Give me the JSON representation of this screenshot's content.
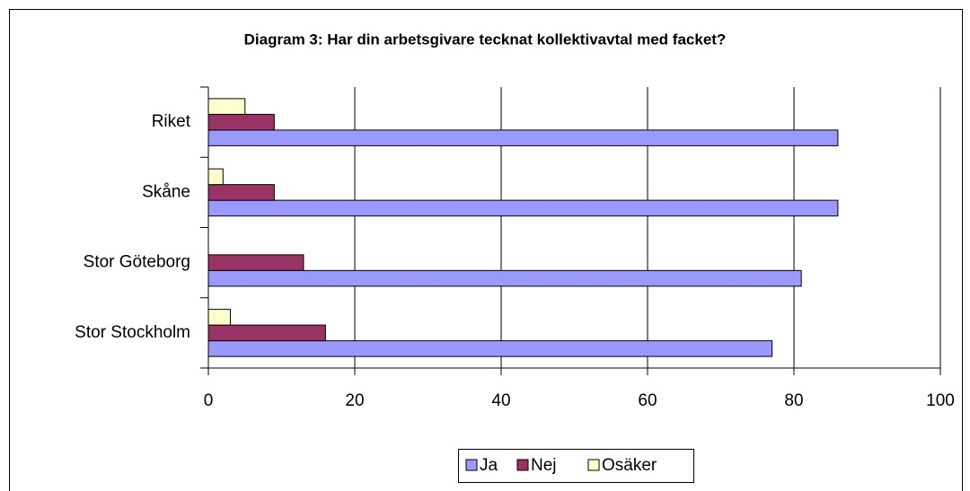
{
  "chart_data": {
    "type": "bar",
    "orientation": "horizontal",
    "title": "Diagram 3: Har din arbetsgivare tecknat kollektivavtal med facket?",
    "categories": [
      "Riket",
      "Skåne",
      "Stor Göteborg",
      "Stor Stockholm"
    ],
    "series": [
      {
        "name": "Ja",
        "color": "#9999ff",
        "values": [
          86,
          86,
          81,
          77
        ]
      },
      {
        "name": "Nej",
        "color": "#993366",
        "values": [
          9,
          9,
          13,
          16
        ]
      },
      {
        "name": "Osäker",
        "color": "#ffffcc",
        "values": [
          5,
          2,
          0,
          3
        ]
      }
    ],
    "xlim": [
      0,
      100
    ],
    "xticks": [
      0,
      20,
      40,
      60,
      80,
      100
    ],
    "grid": true,
    "legend": "bottom"
  }
}
